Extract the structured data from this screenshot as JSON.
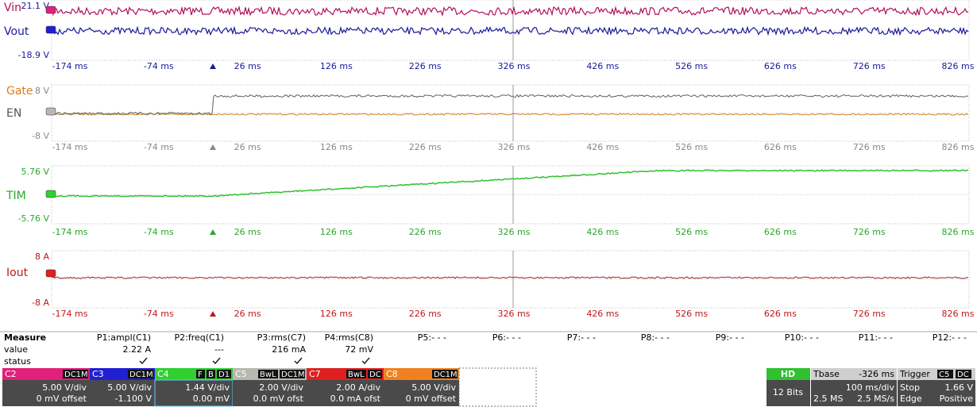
{
  "panels": [
    {
      "labels": [
        {
          "text": "Vin",
          "color": "#b0105a"
        },
        {
          "text": "Vout",
          "color": "#1a1a9a"
        }
      ],
      "top": "21.1 V",
      "bottom": "-18.9 V",
      "scale_color": "#1a1a9a",
      "x_labels": [
        "-174 ms",
        "-74 ms",
        "26 ms",
        "126 ms",
        "226 ms",
        "326 ms",
        "426 ms",
        "526 ms",
        "626 ms",
        "726 ms",
        "826 ms"
      ]
    },
    {
      "labels": [
        {
          "text": "Gate",
          "color": "#e07a1a"
        },
        {
          "text": "EN",
          "color": "#555555"
        }
      ],
      "top": "8 V",
      "bottom": "-8 V",
      "scale_color": "#888888",
      "x_labels": [
        "-174 ms",
        "-74 ms",
        "26 ms",
        "126 ms",
        "226 ms",
        "326 ms",
        "426 ms",
        "526 ms",
        "626 ms",
        "726 ms",
        "826 ms"
      ]
    },
    {
      "labels": [
        {
          "text": "TIM",
          "color": "#2aa82a"
        }
      ],
      "top": "5.76 V",
      "bottom": "-5.76 V",
      "scale_color": "#2aa82a",
      "x_labels": [
        "-174 ms",
        "-74 ms",
        "26 ms",
        "126 ms",
        "226 ms",
        "326 ms",
        "426 ms",
        "526 ms",
        "626 ms",
        "726 ms",
        "826 ms"
      ]
    },
    {
      "labels": [
        {
          "text": "Iout",
          "color": "#c01818"
        }
      ],
      "top": "8 A",
      "bottom": "-8 A",
      "scale_color": "#c01818",
      "x_labels": [
        "-174 ms",
        "-74 ms",
        "26 ms",
        "126 ms",
        "226 ms",
        "326 ms",
        "426 ms",
        "526 ms",
        "626 ms",
        "726 ms",
        "826 ms"
      ]
    }
  ],
  "measure": {
    "title": "Measure",
    "row_labels": [
      "value",
      "status"
    ],
    "params": [
      {
        "name": "P1:ampl(C1)",
        "value": "2.22 A"
      },
      {
        "name": "P2:freq(C1)",
        "value": "---"
      },
      {
        "name": "P3:rms(C7)",
        "value": "216 mA"
      },
      {
        "name": "P4:rms(C8)",
        "value": "72 mV"
      },
      {
        "name": "P5:- - -"
      },
      {
        "name": "P6:- - -"
      },
      {
        "name": "P7:- - -"
      },
      {
        "name": "P8:- - -"
      },
      {
        "name": "P9:- - -"
      },
      {
        "name": "P10:- - -"
      },
      {
        "name": "P11:- - -"
      },
      {
        "name": "P12:- - -"
      }
    ]
  },
  "channels": [
    {
      "name": "C2",
      "tags": [
        "DC1M"
      ],
      "color": "#e0207a",
      "lines": [
        "5.00 V/div",
        "0 mV offset"
      ]
    },
    {
      "name": "C3",
      "tags": [
        "DC1M"
      ],
      "color": "#2020d0",
      "lines": [
        "5.00 V/div",
        "-1.100 V"
      ]
    },
    {
      "name": "C4",
      "tags": [
        "F",
        "B",
        "D1"
      ],
      "color": "#30d030",
      "lines": [
        "1.44 V/div",
        "0.00 mV"
      ]
    },
    {
      "name": "C5",
      "tags": [
        "BwL",
        "DC1M"
      ],
      "color": "#b8b8b0",
      "lines": [
        "2.00 V/div",
        "0.0 mV ofst"
      ]
    },
    {
      "name": "C7",
      "tags": [
        "BwL",
        "DC"
      ],
      "color": "#e02020",
      "lines": [
        "2.00 A/div",
        "0.0 mA ofst"
      ]
    },
    {
      "name": "C8",
      "tags": [
        "DC1M"
      ],
      "color": "#f08020",
      "lines": [
        "5.00 V/div",
        "0 mV offset"
      ]
    }
  ],
  "hd": {
    "title": "HD",
    "bits": "12 Bits"
  },
  "tbase": {
    "title": "Tbase",
    "offset": "-326 ms",
    "div": "100 ms/div",
    "samples": "2.5 MS",
    "rate": "2.5 MS/s"
  },
  "trigger": {
    "title": "Trigger",
    "source": "C5",
    "coupling": "DC",
    "mode": "Stop",
    "level": "1.66 V",
    "type": "Edge",
    "slope": "Positive"
  }
}
